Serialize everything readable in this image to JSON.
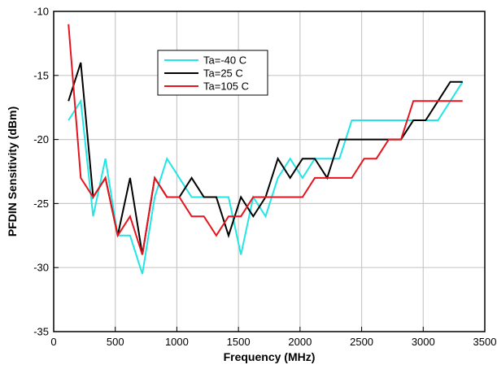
{
  "chart_data": {
    "type": "line",
    "title": "",
    "xlabel": "Frequency (MHz)",
    "ylabel": "PFDIN Sensitivity (dBm)",
    "xlim": [
      0,
      3500
    ],
    "ylim": [
      -35,
      -10
    ],
    "xticks": [
      0,
      500,
      1000,
      1500,
      2000,
      2500,
      3000,
      3500
    ],
    "yticks": [
      -35,
      -30,
      -25,
      -20,
      -15,
      -10
    ],
    "grid": true,
    "legend_position": "top-left-center",
    "series": [
      {
        "name": "Ta=-40 C",
        "color": "#22e6e6",
        "x": [
          120,
          220,
          320,
          420,
          520,
          620,
          720,
          820,
          920,
          1020,
          1120,
          1220,
          1320,
          1420,
          1520,
          1620,
          1720,
          1820,
          1920,
          2020,
          2120,
          2220,
          2320,
          2420,
          2520,
          2620,
          2720,
          2820,
          2920,
          3020,
          3120,
          3220,
          3320
        ],
        "y": [
          -18.5,
          -17,
          -26,
          -21.5,
          -27.5,
          -27.5,
          -30.5,
          -24.5,
          -21.5,
          -23,
          -24.5,
          -24.5,
          -24.5,
          -24.5,
          -29,
          -24.5,
          -26,
          -23,
          -21.5,
          -23,
          -21.5,
          -21.5,
          -21.5,
          -18.5,
          -18.5,
          -18.5,
          -18.5,
          -18.5,
          -18.5,
          -18.5,
          -18.5,
          -17,
          -15.5
        ]
      },
      {
        "name": "Ta=25 C",
        "color": "#000000",
        "x": [
          120,
          220,
          320,
          420,
          520,
          620,
          720,
          820,
          920,
          1020,
          1120,
          1220,
          1320,
          1420,
          1520,
          1620,
          1720,
          1820,
          1920,
          2020,
          2120,
          2220,
          2320,
          2420,
          2520,
          2620,
          2720,
          2820,
          2920,
          3020,
          3120,
          3220,
          3320
        ],
        "y": [
          -17,
          -14,
          -24.5,
          -23,
          -27.5,
          -23,
          -29,
          -23,
          -24.5,
          -24.5,
          -23,
          -24.5,
          -24.5,
          -27.5,
          -24.5,
          -26,
          -24.5,
          -21.5,
          -23,
          -21.5,
          -21.5,
          -23,
          -20,
          -20,
          -20,
          -20,
          -20,
          -20,
          -18.5,
          -18.5,
          -17,
          -15.5,
          -15.5
        ]
      },
      {
        "name": "Ta=105 C",
        "color": "#e6141e",
        "x": [
          120,
          220,
          320,
          420,
          520,
          620,
          720,
          820,
          920,
          1020,
          1120,
          1220,
          1320,
          1420,
          1520,
          1620,
          1720,
          1820,
          1920,
          2020,
          2120,
          2220,
          2320,
          2420,
          2520,
          2620,
          2720,
          2820,
          2920,
          3020,
          3120,
          3220,
          3320
        ],
        "y": [
          -11,
          -23,
          -24.5,
          -23,
          -27.5,
          -26,
          -29,
          -23,
          -24.5,
          -24.5,
          -26,
          -26,
          -27.5,
          -26,
          -26,
          -24.5,
          -24.5,
          -24.5,
          -24.5,
          -24.5,
          -23,
          -23,
          -23,
          -23,
          -21.5,
          -21.5,
          -20,
          -20,
          -17,
          -17,
          -17,
          -17,
          -17
        ]
      }
    ]
  }
}
